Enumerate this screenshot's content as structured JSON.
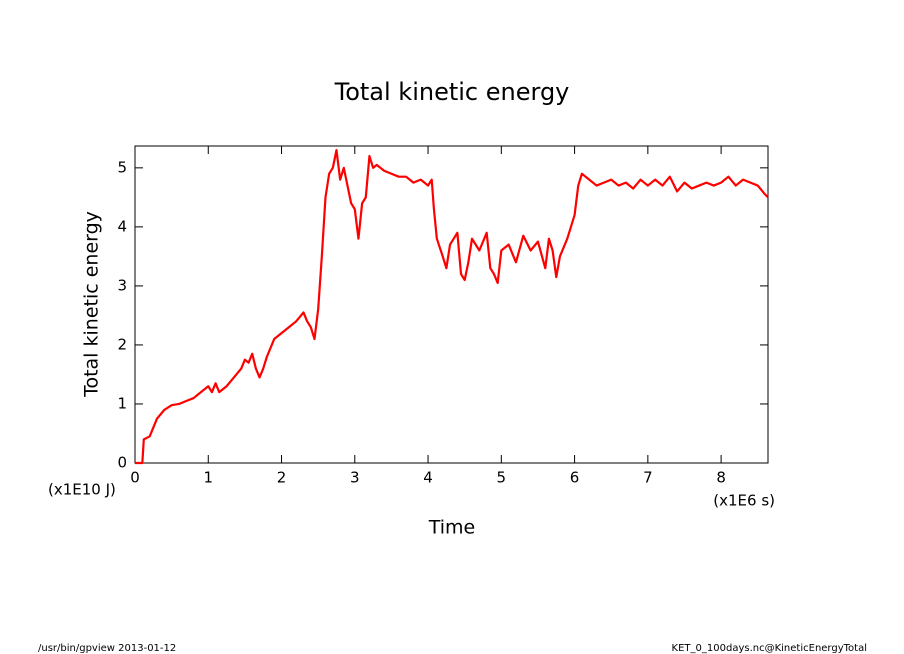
{
  "chart_data": {
    "type": "line",
    "title": "Total kinetic energy",
    "xlabel": "Time",
    "ylabel": "Total kinetic energy",
    "x_unit": "(x1E6 s)",
    "y_unit": "(x1E10 J)",
    "footer_left": "/usr/bin/gpview  2013-01-12",
    "footer_right": "KET_0_100days.nc@KineticEnergyTotal",
    "xlim": [
      0,
      8.64
    ],
    "xticks": [
      0,
      1,
      2,
      3,
      4,
      5,
      6,
      7,
      8
    ],
    "ylim": [
      0,
      5.37
    ],
    "yticks": [
      0,
      1,
      2,
      3,
      4,
      5
    ],
    "series": [
      {
        "color": "#ff0000",
        "x": [
          0,
          0.1,
          0.12,
          0.2,
          0.3,
          0.4,
          0.5,
          0.6,
          0.7,
          0.8,
          0.9,
          1.0,
          1.05,
          1.1,
          1.15,
          1.25,
          1.35,
          1.45,
          1.5,
          1.55,
          1.6,
          1.65,
          1.7,
          1.75,
          1.8,
          1.9,
          2.0,
          2.1,
          2.2,
          2.3,
          2.35,
          2.4,
          2.45,
          2.5,
          2.55,
          2.6,
          2.65,
          2.7,
          2.75,
          2.8,
          2.85,
          2.9,
          2.95,
          3.0,
          3.05,
          3.1,
          3.15,
          3.2,
          3.25,
          3.3,
          3.4,
          3.5,
          3.6,
          3.7,
          3.8,
          3.9,
          4.0,
          4.05,
          4.08,
          4.12,
          4.2,
          4.25,
          4.3,
          4.4,
          4.45,
          4.5,
          4.55,
          4.6,
          4.7,
          4.8,
          4.85,
          4.9,
          4.95,
          5.0,
          5.1,
          5.2,
          5.3,
          5.4,
          5.5,
          5.6,
          5.65,
          5.7,
          5.75,
          5.8,
          5.9,
          6.0,
          6.05,
          6.1,
          6.2,
          6.3,
          6.4,
          6.5,
          6.6,
          6.7,
          6.8,
          6.9,
          7.0,
          7.1,
          7.2,
          7.3,
          7.4,
          7.5,
          7.6,
          7.7,
          7.8,
          7.9,
          8.0,
          8.1,
          8.2,
          8.3,
          8.4,
          8.5,
          8.6,
          8.64
        ],
        "values": [
          0,
          0,
          0.4,
          0.45,
          0.75,
          0.9,
          0.98,
          1.0,
          1.05,
          1.1,
          1.2,
          1.3,
          1.2,
          1.35,
          1.2,
          1.3,
          1.45,
          1.6,
          1.75,
          1.7,
          1.85,
          1.6,
          1.45,
          1.6,
          1.8,
          2.1,
          2.2,
          2.3,
          2.4,
          2.55,
          2.4,
          2.3,
          2.1,
          2.6,
          3.5,
          4.5,
          4.9,
          5.0,
          5.3,
          4.8,
          5.0,
          4.7,
          4.4,
          4.3,
          3.8,
          4.4,
          4.5,
          5.2,
          5.0,
          5.05,
          4.95,
          4.9,
          4.85,
          4.85,
          4.75,
          4.8,
          4.7,
          4.8,
          4.3,
          3.8,
          3.5,
          3.3,
          3.7,
          3.9,
          3.2,
          3.1,
          3.4,
          3.8,
          3.6,
          3.9,
          3.3,
          3.2,
          3.05,
          3.6,
          3.7,
          3.4,
          3.85,
          3.6,
          3.75,
          3.3,
          3.8,
          3.6,
          3.15,
          3.5,
          3.8,
          4.2,
          4.7,
          4.9,
          4.8,
          4.7,
          4.75,
          4.8,
          4.7,
          4.75,
          4.65,
          4.8,
          4.7,
          4.8,
          4.7,
          4.85,
          4.6,
          4.75,
          4.65,
          4.7,
          4.75,
          4.7,
          4.75,
          4.85,
          4.7,
          4.8,
          4.75,
          4.7,
          4.55,
          4.5
        ]
      }
    ]
  }
}
